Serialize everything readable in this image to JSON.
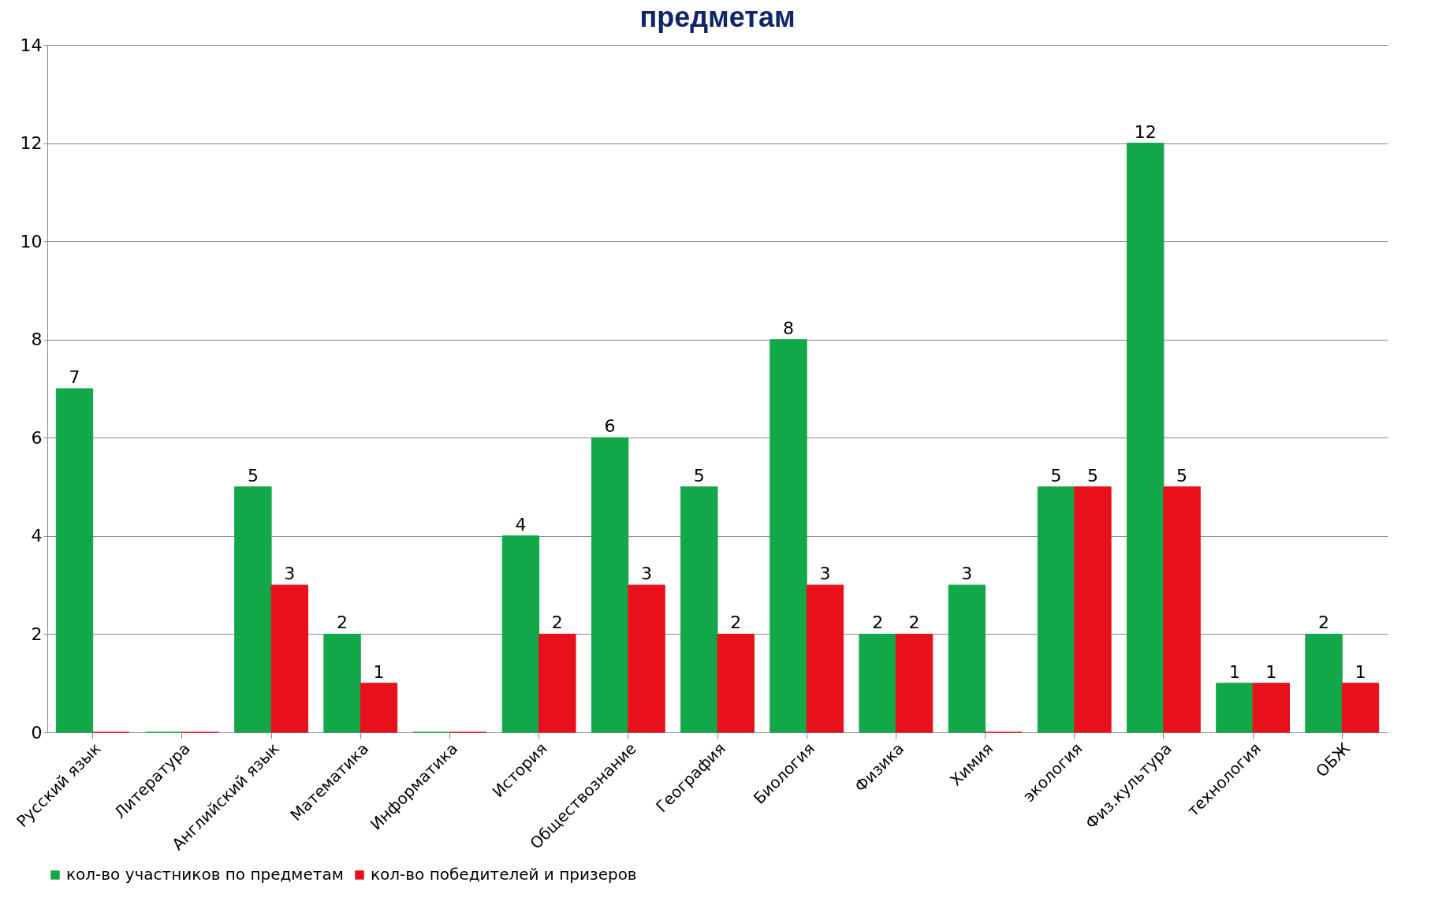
{
  "chart_data": {
    "type": "bar",
    "title": "предметам",
    "categories": [
      "Русский язык",
      "Литература",
      "Английский язык",
      "Математика",
      "Информатика",
      "История",
      "Обществознание",
      "География",
      "Биология",
      "Физика",
      "Химия",
      "экология",
      "Физ.культура",
      "технология",
      "ОБЖ"
    ],
    "series": [
      {
        "name": "кол-во участников по предметам",
        "color": "#12a84a",
        "values": [
          7,
          0,
          5,
          2,
          0,
          4,
          6,
          5,
          8,
          2,
          3,
          5,
          12,
          1,
          2
        ],
        "value_labels": [
          "7",
          null,
          "5",
          "2",
          null,
          "4",
          "6",
          "5",
          "8",
          "2",
          "3",
          "5",
          "12",
          "1",
          "2"
        ]
      },
      {
        "name": "кол-во победителей и призеров",
        "color": "#e8101a",
        "values": [
          0,
          0,
          3,
          1,
          0,
          2,
          3,
          2,
          3,
          2,
          0,
          5,
          5,
          1,
          1
        ],
        "value_labels": [
          null,
          null,
          "3",
          "1",
          null,
          "2",
          "3",
          "2",
          "3",
          "2",
          null,
          "5",
          "5",
          "1",
          "1"
        ]
      }
    ],
    "ylim": [
      0,
      14
    ],
    "yticks": [
      0,
      2,
      4,
      6,
      8,
      10,
      12,
      14
    ],
    "grid": "y",
    "legend": "bottom"
  }
}
